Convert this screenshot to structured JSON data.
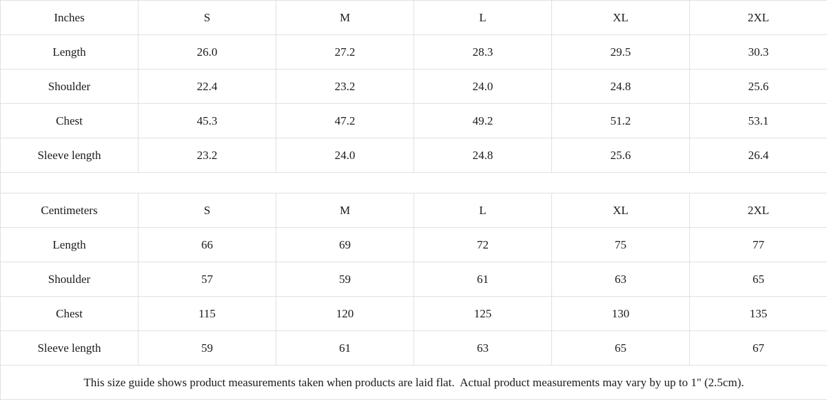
{
  "colors": {
    "header_bg": "#f1f1f1",
    "cell_bg": "#ffffff",
    "border": "#e0e0e0",
    "text": "#1a1a1a"
  },
  "sections": [
    {
      "unit_label": "Inches",
      "sizes": [
        "S",
        "M",
        "L",
        "XL",
        "2XL"
      ],
      "rows": [
        {
          "label": "Length",
          "values": [
            "26.0",
            "27.2",
            "28.3",
            "29.5",
            "30.3"
          ]
        },
        {
          "label": "Shoulder",
          "values": [
            "22.4",
            "23.2",
            "24.0",
            "24.8",
            "25.6"
          ]
        },
        {
          "label": "Chest",
          "values": [
            "45.3",
            "47.2",
            "49.2",
            "51.2",
            "53.1"
          ]
        },
        {
          "label": "Sleeve length",
          "values": [
            "23.2",
            "24.0",
            "24.8",
            "25.6",
            "26.4"
          ]
        }
      ]
    },
    {
      "unit_label": "Centimeters",
      "sizes": [
        "S",
        "M",
        "L",
        "XL",
        "2XL"
      ],
      "rows": [
        {
          "label": "Length",
          "values": [
            "66",
            "69",
            "72",
            "75",
            "77"
          ]
        },
        {
          "label": "Shoulder",
          "values": [
            "57",
            "59",
            "61",
            "63",
            "65"
          ]
        },
        {
          "label": "Chest",
          "values": [
            "115",
            "120",
            "125",
            "130",
            "135"
          ]
        },
        {
          "label": "Sleeve length",
          "values": [
            "59",
            "61",
            "63",
            "65",
            "67"
          ]
        }
      ]
    }
  ],
  "footer_note": "This size guide shows product measurements taken when products are laid flat.  Actual product measurements may vary by up to 1\" (2.5cm).",
  "chart_data": [
    {
      "type": "table",
      "title": "Size guide (Inches)",
      "columns": [
        "Inches",
        "S",
        "M",
        "L",
        "XL",
        "2XL"
      ],
      "rows": [
        [
          "Length",
          26.0,
          27.2,
          28.3,
          29.5,
          30.3
        ],
        [
          "Shoulder",
          22.4,
          23.2,
          24.0,
          24.8,
          25.6
        ],
        [
          "Chest",
          45.3,
          47.2,
          49.2,
          51.2,
          53.1
        ],
        [
          "Sleeve length",
          23.2,
          24.0,
          24.8,
          25.6,
          26.4
        ]
      ]
    },
    {
      "type": "table",
      "title": "Size guide (Centimeters)",
      "columns": [
        "Centimeters",
        "S",
        "M",
        "L",
        "XL",
        "2XL"
      ],
      "rows": [
        [
          "Length",
          66,
          69,
          72,
          75,
          77
        ],
        [
          "Shoulder",
          57,
          59,
          61,
          63,
          65
        ],
        [
          "Chest",
          115,
          120,
          125,
          130,
          135
        ],
        [
          "Sleeve length",
          59,
          61,
          63,
          65,
          67
        ]
      ]
    }
  ]
}
